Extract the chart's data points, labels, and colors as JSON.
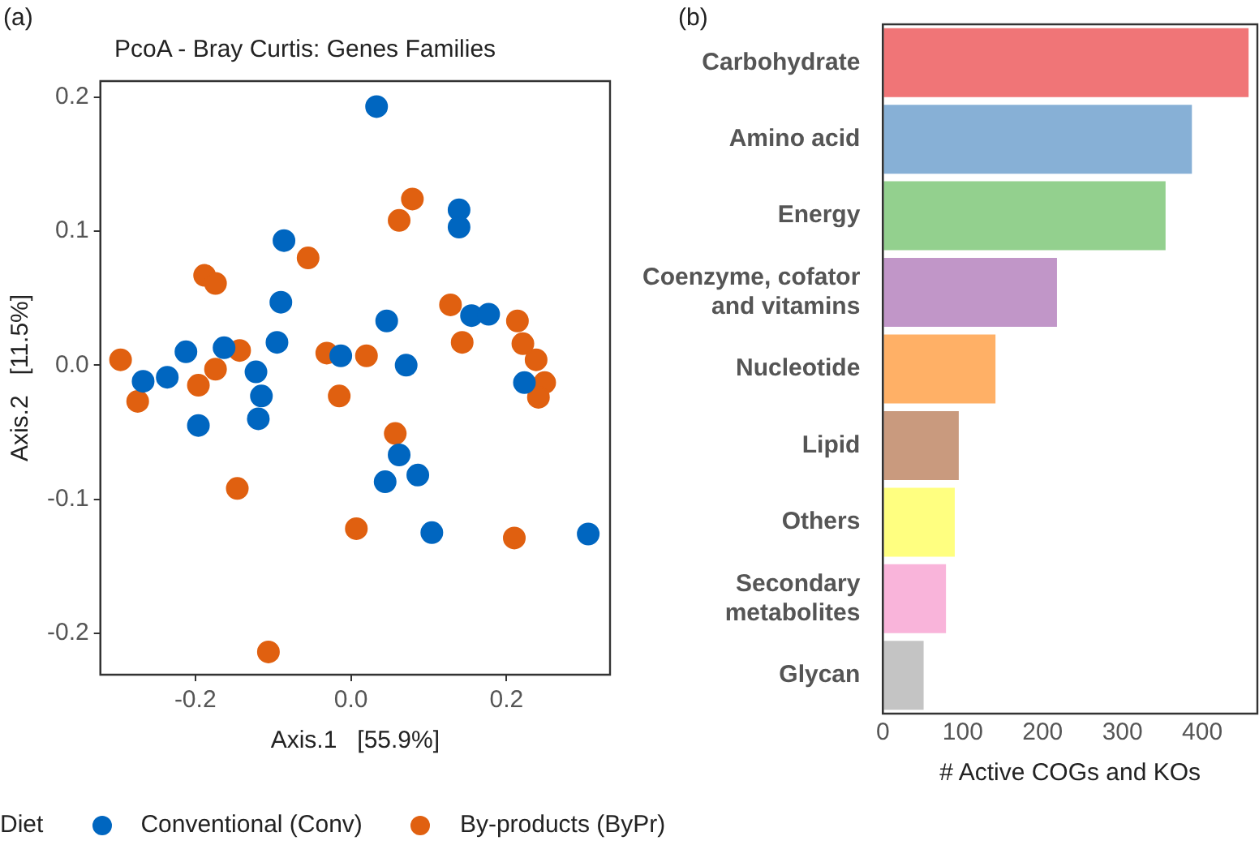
{
  "chart_data": [
    {
      "type": "scatter",
      "title": "PcoA - Bray Curtis: Genes Families",
      "xlabel": "Axis.1   [55.9%]",
      "ylabel": "Axis.2   [11.5%]",
      "legend_title": "Diet",
      "legend": "bottom",
      "grid": false,
      "marker": "circle",
      "annotations": [
        "(a)"
      ],
      "xlim": [
        -0.322,
        0.333
      ],
      "ylim": [
        -0.231,
        0.212
      ],
      "xticks": [
        {
          "value": -0.2,
          "label": "-0.2"
        },
        {
          "value": 0,
          "label": "0.0"
        },
        {
          "value": 0.2,
          "label": "0.2"
        }
      ],
      "yticks": [
        {
          "value": -0.2,
          "label": "-0.2"
        },
        {
          "value": -0.1,
          "label": "-0.1"
        },
        {
          "value": 0,
          "label": "0.0"
        },
        {
          "value": 0.1,
          "label": "0.1"
        },
        {
          "value": 0.2,
          "label": "0.2"
        }
      ],
      "series": [
        {
          "name": "Conventional (Conv)",
          "color": "#0066c0",
          "x": [
            0.033,
            0.139,
            0.139,
            -0.086,
            -0.09,
            0.046,
            0.155,
            0.177,
            -0.095,
            -0.013,
            0.071,
            -0.212,
            -0.163,
            -0.236,
            -0.267,
            -0.122,
            -0.115,
            -0.119,
            -0.196,
            0.062,
            0.044,
            0.086,
            0.104,
            0.305,
            0.223
          ],
          "values": [
            0.193,
            0.116,
            0.103,
            0.093,
            0.047,
            0.033,
            0.037,
            0.038,
            0.017,
            0.007,
            0,
            0.01,
            0.013,
            -0.009,
            -0.012,
            -0.005,
            -0.023,
            -0.04,
            -0.045,
            -0.067,
            -0.087,
            -0.082,
            -0.125,
            -0.126,
            -0.013
          ]
        },
        {
          "name": "By-products (ByPr)",
          "color": "#e06010",
          "x": [
            -0.296,
            -0.274,
            -0.188,
            -0.174,
            -0.055,
            0.062,
            0.079,
            0.128,
            0.143,
            0.214,
            0.221,
            0.238,
            0.249,
            0.241,
            -0.196,
            -0.174,
            -0.143,
            -0.031,
            0.02,
            -0.015,
            0.057,
            -0.146,
            0.007,
            0.21,
            -0.106
          ],
          "values": [
            0.004,
            -0.027,
            0.067,
            0.061,
            0.08,
            0.108,
            0.124,
            0.045,
            0.017,
            0.033,
            0.016,
            0.004,
            -0.013,
            -0.024,
            -0.015,
            -0.003,
            0.011,
            0.009,
            0.007,
            -0.023,
            -0.051,
            -0.092,
            -0.122,
            -0.129,
            -0.214
          ]
        }
      ]
    },
    {
      "type": "bar",
      "orientation": "horizontal",
      "xlabel": "# Active COGs and KOs",
      "grid": false,
      "annotations": [
        "(b)"
      ],
      "categories": [
        "Carbohydrate",
        "Amino acid",
        "Energy",
        "Coenzyme, cofator and vitamins",
        "Nucleotide",
        "Lipid",
        "Others",
        "Secondary metabolites",
        "Glycan"
      ],
      "values": [
        458,
        387,
        354,
        218,
        141,
        95,
        90,
        79,
        51
      ],
      "colors": [
        "#f07577",
        "#87b0d6",
        "#93d08e",
        "#c196c8",
        "#ffb066",
        "#c99a7e",
        "#ffff80",
        "#f9b4da",
        "#c4c4c4"
      ],
      "xlim": [
        0,
        469
      ],
      "xticks": [
        0,
        100,
        200,
        300,
        400
      ]
    }
  ]
}
